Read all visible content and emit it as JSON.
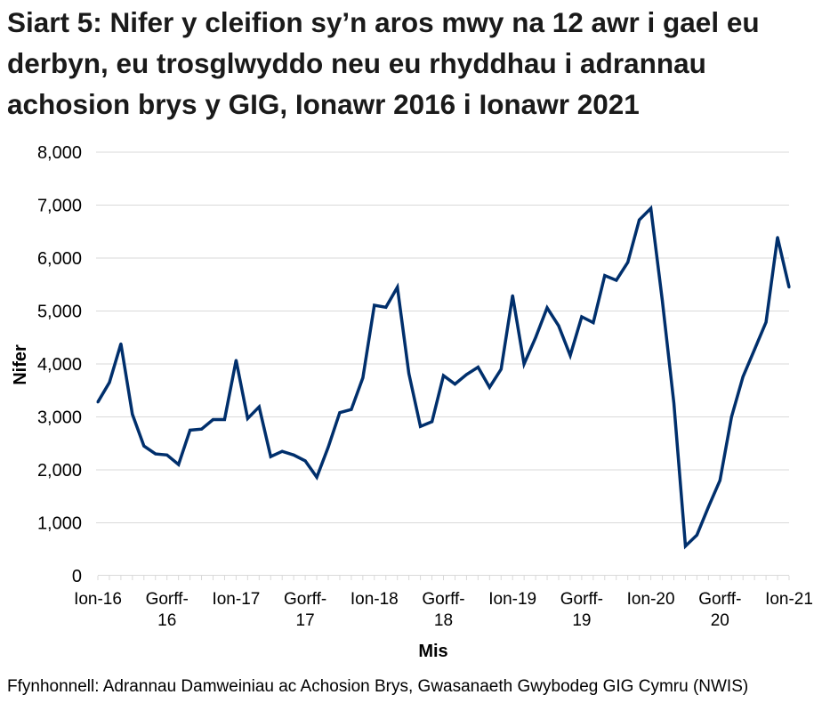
{
  "chart_data": {
    "type": "line",
    "title": "Siart 5: Nifer y cleifion sy’n aros mwy na 12 awr i gael eu derbyn, eu trosglwyddo neu eu rhyddhau i adrannau achosion brys y GIG, Ionawr 2016 i Ionawr 2021",
    "xlabel": "Mis",
    "ylabel": "Nifer",
    "ylim": [
      0,
      8000
    ],
    "yticks": [
      "0",
      "1,000",
      "2,000",
      "3,000",
      "4,000",
      "5,000",
      "6,000",
      "7,000",
      "8,000"
    ],
    "xtick_labels": [
      {
        "index": 0,
        "lines": [
          "Ion-16"
        ]
      },
      {
        "index": 6,
        "lines": [
          "Gorff-",
          "16"
        ]
      },
      {
        "index": 12,
        "lines": [
          "Ion-17"
        ]
      },
      {
        "index": 18,
        "lines": [
          "Gorff-",
          "17"
        ]
      },
      {
        "index": 24,
        "lines": [
          "Ion-18"
        ]
      },
      {
        "index": 30,
        "lines": [
          "Gorff-",
          "18"
        ]
      },
      {
        "index": 36,
        "lines": [
          "Ion-19"
        ]
      },
      {
        "index": 42,
        "lines": [
          "Gorff-",
          "19"
        ]
      },
      {
        "index": 48,
        "lines": [
          "Ion-20"
        ]
      },
      {
        "index": 54,
        "lines": [
          "Gorff-",
          "20"
        ]
      },
      {
        "index": 60,
        "lines": [
          "Ion-21"
        ]
      }
    ],
    "grid": true,
    "line_color": "#002f6c",
    "series": [
      {
        "values": [
          3280,
          3650,
          4380,
          3050,
          2450,
          2300,
          2280,
          2100,
          2750,
          2770,
          2950,
          2950,
          4070,
          2970,
          3190,
          2250,
          2350,
          2280,
          2170,
          1860,
          2430,
          3080,
          3140,
          3740,
          5110,
          5070,
          5450,
          3820,
          2820,
          2910,
          3780,
          3620,
          3800,
          3940,
          3560,
          3900,
          5290,
          4000,
          4500,
          5060,
          4720,
          4160,
          4890,
          4780,
          5670,
          5580,
          5920,
          6720,
          6940,
          5200,
          3260,
          560,
          770,
          1300,
          1800,
          3000,
          3760,
          4270,
          4790,
          6390,
          5450
        ]
      }
    ]
  },
  "source": "Ffynhonnell: Adrannau Damweiniau ac Achosion Brys, Gwasanaeth Gwybodeg GIG Cymru (NWIS)"
}
